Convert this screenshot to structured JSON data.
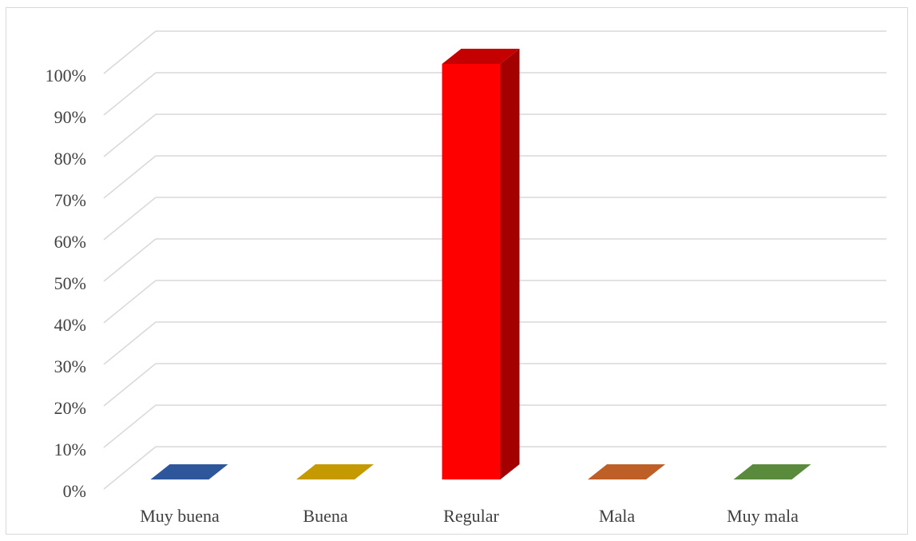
{
  "chart_data": {
    "type": "bar",
    "title": "",
    "xlabel": "",
    "ylabel": "",
    "categories": [
      "Muy buena",
      "Buena",
      "Regular",
      "Mala",
      "Muy mala"
    ],
    "values": [
      0,
      0,
      100,
      0,
      0
    ],
    "value_format": "percent",
    "ylim": [
      0,
      100
    ],
    "yticks": [
      "0%",
      "10%",
      "20%",
      "30%",
      "40%",
      "50%",
      "60%",
      "70%",
      "80%",
      "90%",
      "100%"
    ],
    "grid": true,
    "legend": "none",
    "style": "3d-column",
    "colors": [
      "#2e569a",
      "#c49a00",
      "#ff0000",
      "#bd5f27",
      "#5a8a3c"
    ],
    "side_colors": [
      "#1f3d6e",
      "#8c6e00",
      "#a30000",
      "#86431b",
      "#3f622a"
    ],
    "top_colors": [
      "#2e569a",
      "#c49a00",
      "#c40000",
      "#bd5f27",
      "#5a8a3c"
    ]
  }
}
